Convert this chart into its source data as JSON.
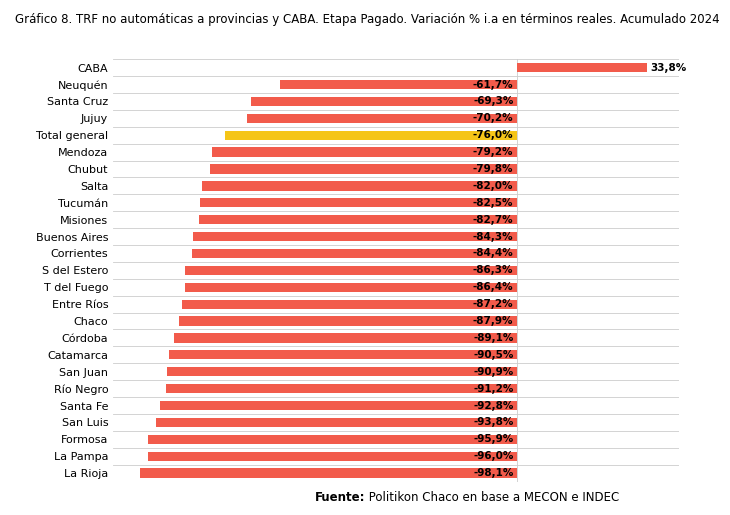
{
  "title": "Gráfico 8. TRF no automáticas a provincias y CABA. Etapa Pagado. Variación % i.a en términos reales. Acumulado 2024",
  "categories": [
    "La Rioja",
    "La Pampa",
    "Formosa",
    "San Luis",
    "Santa Fe",
    "Río Negro",
    "San Juan",
    "Catamarca",
    "Córdoba",
    "Chaco",
    "Entre Ríos",
    "T del Fuego",
    "S del Estero",
    "Corrientes",
    "Buenos Aires",
    "Misiones",
    "Tucumán",
    "Salta",
    "Chubut",
    "Mendoza",
    "Total general",
    "Jujuy",
    "Santa Cruz",
    "Neuquén",
    "CABA"
  ],
  "values": [
    -98.1,
    -96.0,
    -95.9,
    -93.8,
    -92.8,
    -91.2,
    -90.9,
    -90.5,
    -89.1,
    -87.9,
    -87.2,
    -86.4,
    -86.3,
    -84.4,
    -84.3,
    -82.7,
    -82.5,
    -82.0,
    -79.8,
    -79.2,
    -76.0,
    -70.2,
    -69.3,
    -61.7,
    33.8
  ],
  "labels": [
    "-98,1%",
    "-96,0%",
    "-95,9%",
    "-93,8%",
    "-92,8%",
    "-91,2%",
    "-90,9%",
    "-90,5%",
    "-89,1%",
    "-87,9%",
    "-87,2%",
    "-86,4%",
    "-86,3%",
    "-84,4%",
    "-84,3%",
    "-82,7%",
    "-82,5%",
    "-82,0%",
    "-79,8%",
    "-79,2%",
    "-76,0%",
    "-70,2%",
    "-69,3%",
    "-61,7%",
    "33,8%"
  ],
  "bar_colors": [
    "#f25b4b",
    "#f25b4b",
    "#f25b4b",
    "#f25b4b",
    "#f25b4b",
    "#f25b4b",
    "#f25b4b",
    "#f25b4b",
    "#f25b4b",
    "#f25b4b",
    "#f25b4b",
    "#f25b4b",
    "#f25b4b",
    "#f25b4b",
    "#f25b4b",
    "#f25b4b",
    "#f25b4b",
    "#f25b4b",
    "#f25b4b",
    "#f25b4b",
    "#f5c518",
    "#f25b4b",
    "#f25b4b",
    "#f25b4b",
    "#f25b4b"
  ],
  "footnote_bold": "Fuente:",
  "footnote_normal": " Politikon Chaco en base a MECON e INDEC",
  "background_color": "#ffffff",
  "title_fontsize": 8.5,
  "label_fontsize": 7.5,
  "tick_fontsize": 8.0,
  "footnote_fontsize": 8.5,
  "xlim_left": -105,
  "xlim_right": 42
}
